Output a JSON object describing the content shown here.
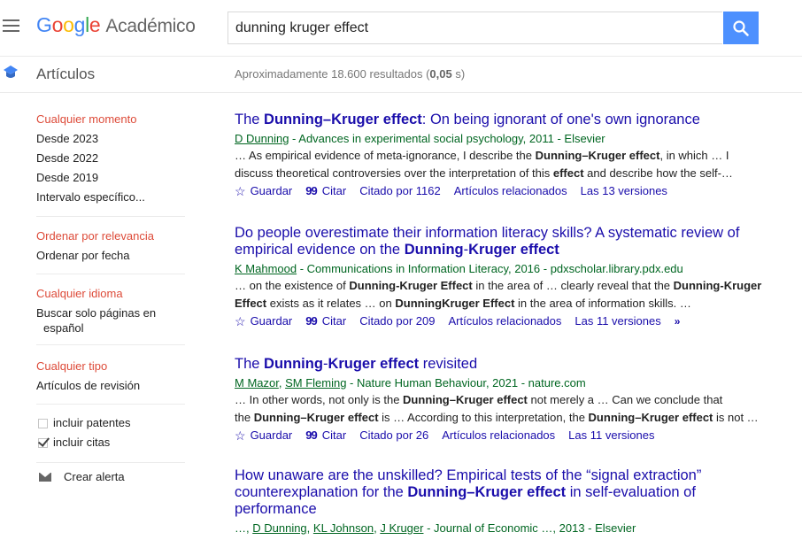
{
  "header": {
    "logo_google": "Google",
    "logo_product": "Académico",
    "search_value": "dunning kruger effect"
  },
  "subheader": {
    "section_label": "Artículos",
    "results_prefix": "Aproximadamente 18.600 resultados (",
    "results_time": "0,05",
    "results_suffix": " s)"
  },
  "sidebar": {
    "time": [
      "Cualquier momento",
      "Desde 2023",
      "Desde 2022",
      "Desde 2019",
      "Intervalo específico..."
    ],
    "sort": [
      "Ordenar por relevancia",
      "Ordenar por fecha"
    ],
    "language": [
      "Cualquier idioma",
      "Buscar solo páginas en",
      "español"
    ],
    "type": [
      "Cualquier tipo",
      "Artículos de revisión"
    ],
    "include_patents": "incluir patentes",
    "include_citations": "incluir citas",
    "create_alert": "Crear alerta"
  },
  "results": [
    {
      "title_parts": [
        "The ",
        "Dunning–Kruger effect",
        ": On being ignorant of one's own ignorance"
      ],
      "authors": [
        "D Dunning"
      ],
      "meta": " - Advances in experimental social psychology, 2011 - Elsevier",
      "snippet_1": [
        "… As empirical evidence of meta-ignorance, I describe the ",
        "Dunning–Kruger effect",
        ", in which … I"
      ],
      "snippet_2": [
        "discuss theoretical controversies over the interpretation of this ",
        "effect",
        " and describe how the self-…"
      ],
      "save": "Guardar",
      "cite": "Citar",
      "cited_by": "Citado por 1162",
      "related": "Artículos relacionados",
      "versions": "Las 13 versiones"
    },
    {
      "title_line1": "Do people overestimate their information literacy skills? A systematic review of",
      "title_parts": [
        "empirical evidence on the ",
        "Dunning",
        "-",
        "Kruger effect"
      ],
      "authors": [
        "K Mahmood"
      ],
      "meta": " - Communications in Information Literacy, 2016 - pdxscholar.library.pdx.edu",
      "snippet_1": [
        "… on the existence of ",
        "Dunning-Kruger Effect",
        " in the area of … clearly reveal that the ",
        "Dunning-Kruger"
      ],
      "snippet_2": [
        "Effect",
        " exists as it relates … on ",
        "DunningKruger Effect",
        " in the area of information skills. …"
      ],
      "save": "Guardar",
      "cite": "Citar",
      "cited_by": "Citado por 209",
      "related": "Artículos relacionados",
      "versions": "Las 11 versiones",
      "more": "»"
    },
    {
      "title_parts": [
        "The ",
        "Dunning",
        "-",
        "Kruger effect",
        " revisited"
      ],
      "authors": [
        "M Mazor",
        "SM Fleming"
      ],
      "meta": " - Nature Human Behaviour, 2021 - nature.com",
      "snippet_1": [
        "… In other words, not only is the ",
        "Dunning–Kruger effect",
        " not merely a … Can we conclude that"
      ],
      "snippet_2": [
        "the ",
        "Dunning–Kruger effect",
        " is … According to this interpretation, the ",
        "Dunning–Kruger effect",
        " is not …"
      ],
      "save": "Guardar",
      "cite": "Citar",
      "cited_by": "Citado por 26",
      "related": "Artículos relacionados",
      "versions": "Las 11 versiones"
    },
    {
      "title_line1": "How unaware are the unskilled? Empirical tests of the “signal extraction”",
      "title_parts": [
        "counterexplanation for the ",
        "Dunning–Kruger effect",
        " in self-evaluation of"
      ],
      "title_line3": "performance",
      "authors_prefix": "…, ",
      "authors": [
        "D Dunning",
        "KL Johnson",
        "J Kruger"
      ],
      "meta": " - Journal of Economic …, 2013 - Elsevier"
    }
  ]
}
